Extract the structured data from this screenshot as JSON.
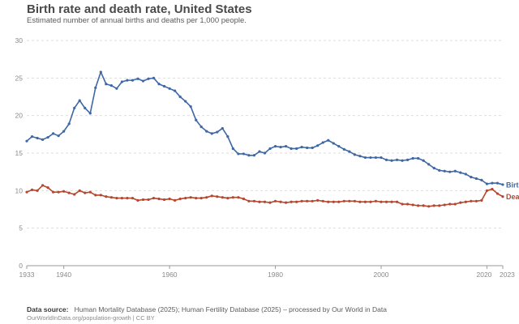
{
  "header": {
    "title": "Birth rate and death rate, United States",
    "subtitle": "Estimated number of annual births and deaths per 1,000 people."
  },
  "footer": {
    "source_label": "Data source:",
    "source_text": "Human Mortality Database (2025); Human Fertility Database (2025) – processed by Our World in Data",
    "url_text": "OurWorldInData.org/population-growth | CC BY"
  },
  "colors": {
    "births": "#3e67a5",
    "deaths": "#b6462d",
    "grid": "#dddddd",
    "axis": "#999999"
  },
  "chart_data": {
    "type": "line",
    "title": "Birth rate and death rate, United States",
    "xlim": [
      1933,
      2023
    ],
    "ylim": [
      0,
      30
    ],
    "yticks": [
      0,
      5,
      10,
      15,
      20,
      25,
      30
    ],
    "xticks": [
      "1933",
      "1940",
      "1960",
      "1980",
      "2000",
      "2020",
      "2023"
    ],
    "grid": "horizontal dashed",
    "legend": "inline labels at right end",
    "x": [
      1933,
      1934,
      1935,
      1936,
      1937,
      1938,
      1939,
      1940,
      1941,
      1942,
      1943,
      1944,
      1945,
      1946,
      1947,
      1948,
      1949,
      1950,
      1951,
      1952,
      1953,
      1954,
      1955,
      1956,
      1957,
      1958,
      1959,
      1960,
      1961,
      1962,
      1963,
      1964,
      1965,
      1966,
      1967,
      1968,
      1969,
      1970,
      1971,
      1972,
      1973,
      1974,
      1975,
      1976,
      1977,
      1978,
      1979,
      1980,
      1981,
      1982,
      1983,
      1984,
      1985,
      1986,
      1987,
      1988,
      1989,
      1990,
      1991,
      1992,
      1993,
      1994,
      1995,
      1996,
      1997,
      1998,
      1999,
      2000,
      2001,
      2002,
      2003,
      2004,
      2005,
      2006,
      2007,
      2008,
      2009,
      2010,
      2011,
      2012,
      2013,
      2014,
      2015,
      2016,
      2017,
      2018,
      2019,
      2020,
      2021,
      2022,
      2023
    ],
    "series": [
      {
        "name": "Births",
        "values": [
          16.6,
          17.2,
          17.0,
          16.8,
          17.1,
          17.6,
          17.3,
          17.9,
          18.9,
          21.0,
          22.0,
          21.0,
          20.3,
          23.7,
          25.8,
          24.2,
          24.0,
          23.6,
          24.5,
          24.7,
          24.7,
          24.9,
          24.6,
          24.9,
          25.0,
          24.2,
          23.9,
          23.6,
          23.3,
          22.5,
          21.9,
          21.2,
          19.4,
          18.5,
          17.9,
          17.6,
          17.8,
          18.3,
          17.2,
          15.6,
          14.9,
          14.9,
          14.7,
          14.7,
          15.2,
          15.0,
          15.6,
          15.9,
          15.8,
          15.9,
          15.6,
          15.6,
          15.8,
          15.7,
          15.7,
          16.0,
          16.4,
          16.7,
          16.3,
          15.9,
          15.5,
          15.2,
          14.8,
          14.6,
          14.4,
          14.4,
          14.4,
          14.4,
          14.1,
          14.0,
          14.1,
          14.0,
          14.1,
          14.3,
          14.3,
          14.0,
          13.5,
          13.0,
          12.7,
          12.6,
          12.5,
          12.6,
          12.4,
          12.2,
          11.8,
          11.6,
          11.4,
          10.9,
          11.0,
          11.0,
          10.8
        ]
      },
      {
        "name": "Deaths",
        "values": [
          9.8,
          10.1,
          10.0,
          10.7,
          10.4,
          9.8,
          9.8,
          9.9,
          9.7,
          9.5,
          10.0,
          9.7,
          9.8,
          9.4,
          9.4,
          9.2,
          9.1,
          9.0,
          9.0,
          9.0,
          9.0,
          8.7,
          8.8,
          8.8,
          9.0,
          8.9,
          8.8,
          8.9,
          8.7,
          8.9,
          9.0,
          9.1,
          9.0,
          9.0,
          9.1,
          9.3,
          9.2,
          9.1,
          9.0,
          9.1,
          9.1,
          8.9,
          8.6,
          8.6,
          8.5,
          8.5,
          8.4,
          8.6,
          8.5,
          8.4,
          8.5,
          8.5,
          8.6,
          8.6,
          8.6,
          8.7,
          8.6,
          8.5,
          8.5,
          8.5,
          8.6,
          8.6,
          8.6,
          8.5,
          8.5,
          8.5,
          8.6,
          8.5,
          8.5,
          8.5,
          8.5,
          8.2,
          8.2,
          8.1,
          8.0,
          8.0,
          7.9,
          8.0,
          8.0,
          8.1,
          8.2,
          8.2,
          8.4,
          8.5,
          8.6,
          8.6,
          8.7,
          10.0,
          10.2,
          9.6,
          9.2
        ]
      }
    ],
    "end_labels": [
      "Birt",
      "Dea"
    ]
  }
}
